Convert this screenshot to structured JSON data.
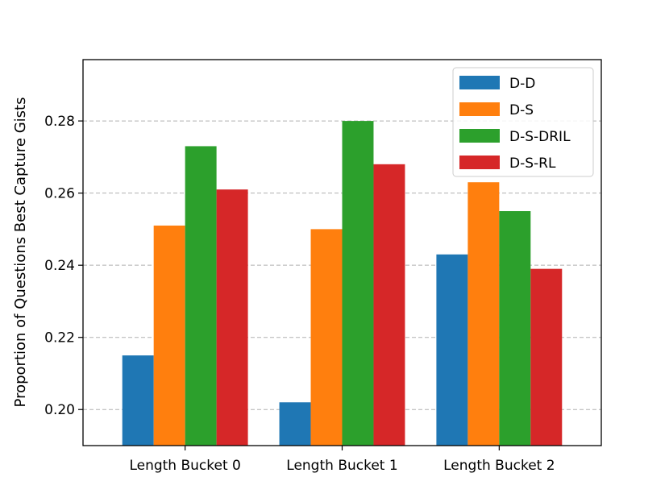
{
  "chart_data": {
    "type": "bar",
    "title": "",
    "xlabel": "",
    "ylabel": "Proportion of Questions Best Capture Gists",
    "categories": [
      "Length Bucket 0",
      "Length Bucket 1",
      "Length Bucket 2"
    ],
    "series": [
      {
        "name": "D-D",
        "color": "#1f77b4",
        "values": [
          0.215,
          0.202,
          0.243
        ]
      },
      {
        "name": "D-S",
        "color": "#ff7f0e",
        "values": [
          0.251,
          0.25,
          0.263
        ]
      },
      {
        "name": "D-S-DRIL",
        "color": "#2ca02c",
        "values": [
          0.273,
          0.28,
          0.255
        ]
      },
      {
        "name": "D-S-RL",
        "color": "#d62728",
        "values": [
          0.261,
          0.268,
          0.239
        ]
      }
    ],
    "ylim": [
      0.19,
      0.297
    ],
    "yticks": [
      0.2,
      0.22,
      0.24,
      0.26,
      0.28
    ],
    "ytick_labels": [
      "0.20",
      "0.22",
      "0.24",
      "0.26",
      "0.28"
    ],
    "grid": "y-dashed",
    "legend_position": "top-right"
  }
}
